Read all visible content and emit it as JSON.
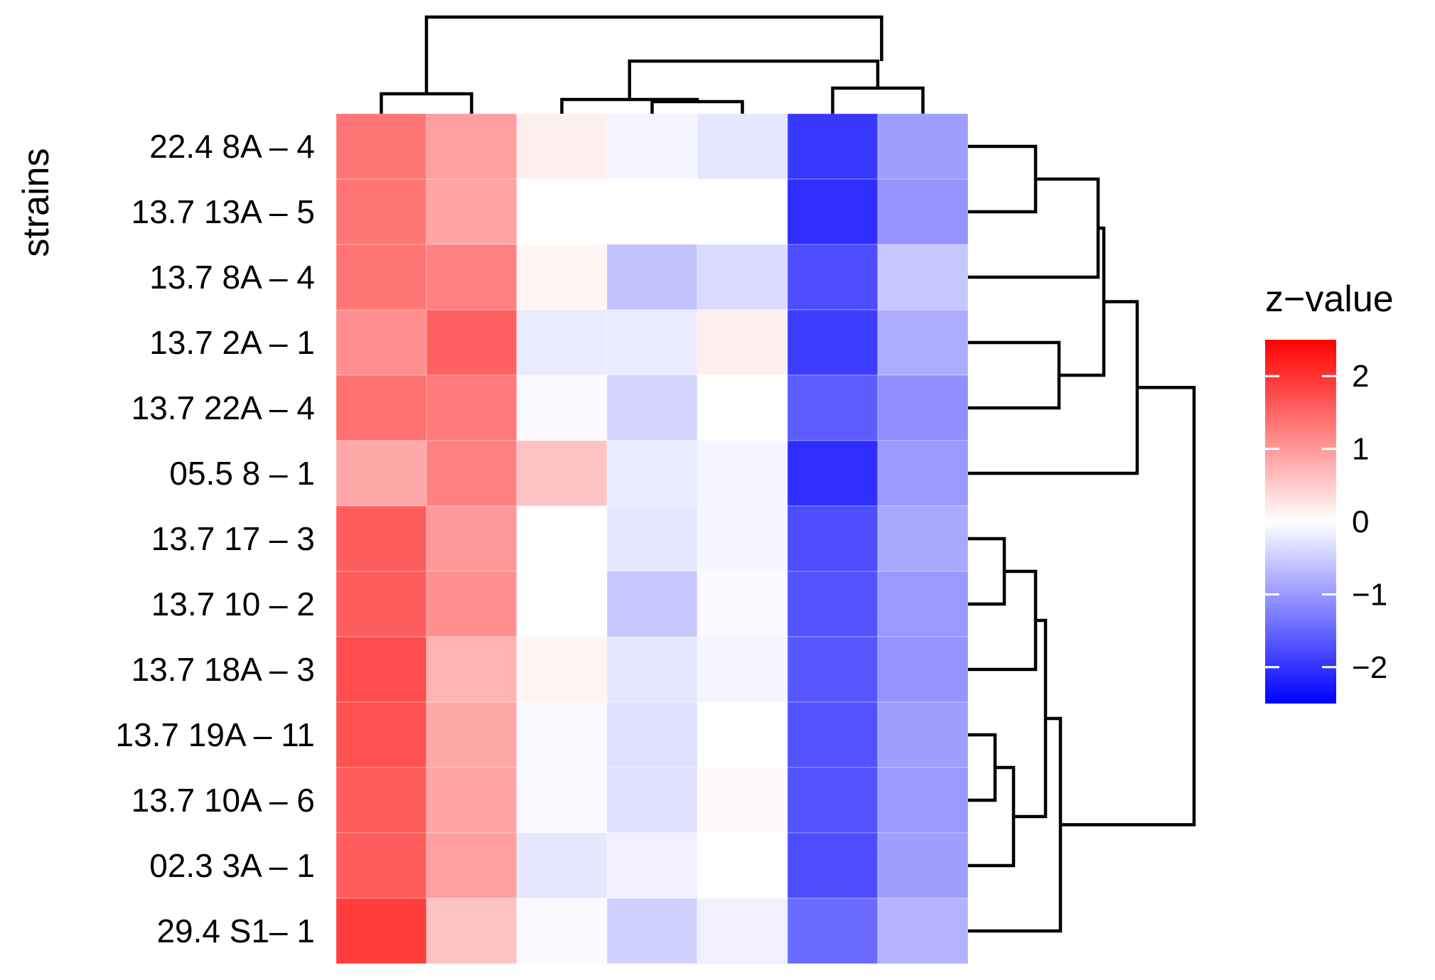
{
  "chart_data": {
    "type": "heatmap",
    "title": "",
    "ylabel": "strains",
    "xlabel": "",
    "rows": [
      "22.4 8A – 4",
      "13.7 13A – 5",
      "13.7 8A – 4",
      "13.7 2A – 1",
      "13.7 22A – 4",
      "05.5 8 – 1",
      "13.7 17 – 3",
      "13.7 10 – 2",
      "13.7 18A – 3",
      "13.7 19A – 11",
      "13.7 10A – 6",
      "02.3 3A – 1",
      "29.4 S1– 1"
    ],
    "columns_count": 7,
    "values": [
      [
        1.35,
        0.95,
        0.15,
        -0.1,
        -0.25,
        -1.95,
        -0.95
      ],
      [
        1.35,
        0.9,
        0.0,
        0.0,
        0.0,
        -2.05,
        -1.05
      ],
      [
        1.35,
        1.25,
        0.1,
        -0.6,
        -0.35,
        -1.75,
        -0.55
      ],
      [
        1.1,
        1.55,
        -0.2,
        -0.2,
        0.15,
        -1.9,
        -0.8
      ],
      [
        1.4,
        1.3,
        -0.05,
        -0.4,
        0.0,
        -1.6,
        -1.1
      ],
      [
        0.85,
        1.25,
        0.6,
        -0.2,
        -0.1,
        -2.05,
        -1.0
      ],
      [
        1.6,
        1.0,
        0.0,
        -0.25,
        -0.1,
        -1.75,
        -0.85
      ],
      [
        1.6,
        1.1,
        0.0,
        -0.55,
        -0.05,
        -1.7,
        -1.0
      ],
      [
        1.75,
        0.75,
        0.1,
        -0.25,
        -0.1,
        -1.65,
        -1.05
      ],
      [
        1.7,
        0.85,
        -0.05,
        -0.3,
        0.0,
        -1.7,
        -0.95
      ],
      [
        1.6,
        0.9,
        -0.05,
        -0.3,
        0.05,
        -1.7,
        -1.0
      ],
      [
        1.6,
        0.95,
        -0.25,
        -0.15,
        0.0,
        -1.75,
        -0.95
      ],
      [
        1.9,
        0.6,
        -0.05,
        -0.45,
        -0.15,
        -1.45,
        -0.75
      ]
    ],
    "colorscale": {
      "low": "#0000ff",
      "mid": "#ffffff",
      "high": "#ff0000",
      "min": -2.5,
      "max": 2.5
    },
    "legend": {
      "title": "z−value",
      "ticks": [
        2,
        1,
        0,
        -1,
        -2
      ],
      "tick_labels": [
        "2",
        "1",
        "0",
        "−1",
        "−2"
      ],
      "placement": "right"
    },
    "row_dendrogram": true,
    "column_dendrogram": true
  }
}
